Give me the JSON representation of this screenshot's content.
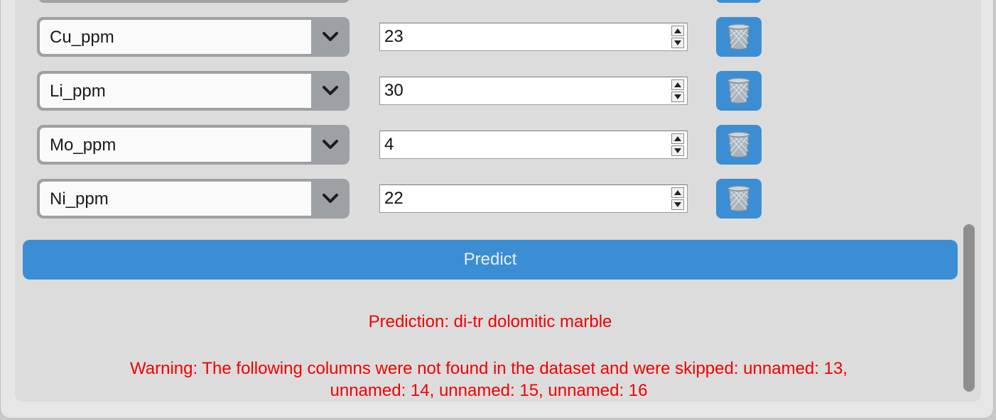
{
  "rows": [
    {
      "column": "Cu_ppm",
      "value": "23"
    },
    {
      "column": "Li_ppm",
      "value": "30"
    },
    {
      "column": "Mo_ppm",
      "value": "4"
    },
    {
      "column": "Ni_ppm",
      "value": "22"
    }
  ],
  "icons": {
    "dropdown": "chevron-down-icon",
    "stepper_up": "arrow-up-icon",
    "stepper_down": "arrow-down-icon",
    "delete": "trash-icon"
  },
  "predict_button": {
    "label": "Predict"
  },
  "result": {
    "prediction": "Prediction: di-tr dolomitic marble",
    "warning_line1": "Warning: The following columns were not found in the dataset and were skipped: unnamed: 13,",
    "warning_line2": "unnamed: 14, unnamed: 15, unnamed: 16"
  },
  "colors": {
    "accent": "#3b8ed3",
    "error_text": "#f20000",
    "select_frame": "#9da0a4",
    "panel": "#dcdcdc"
  }
}
